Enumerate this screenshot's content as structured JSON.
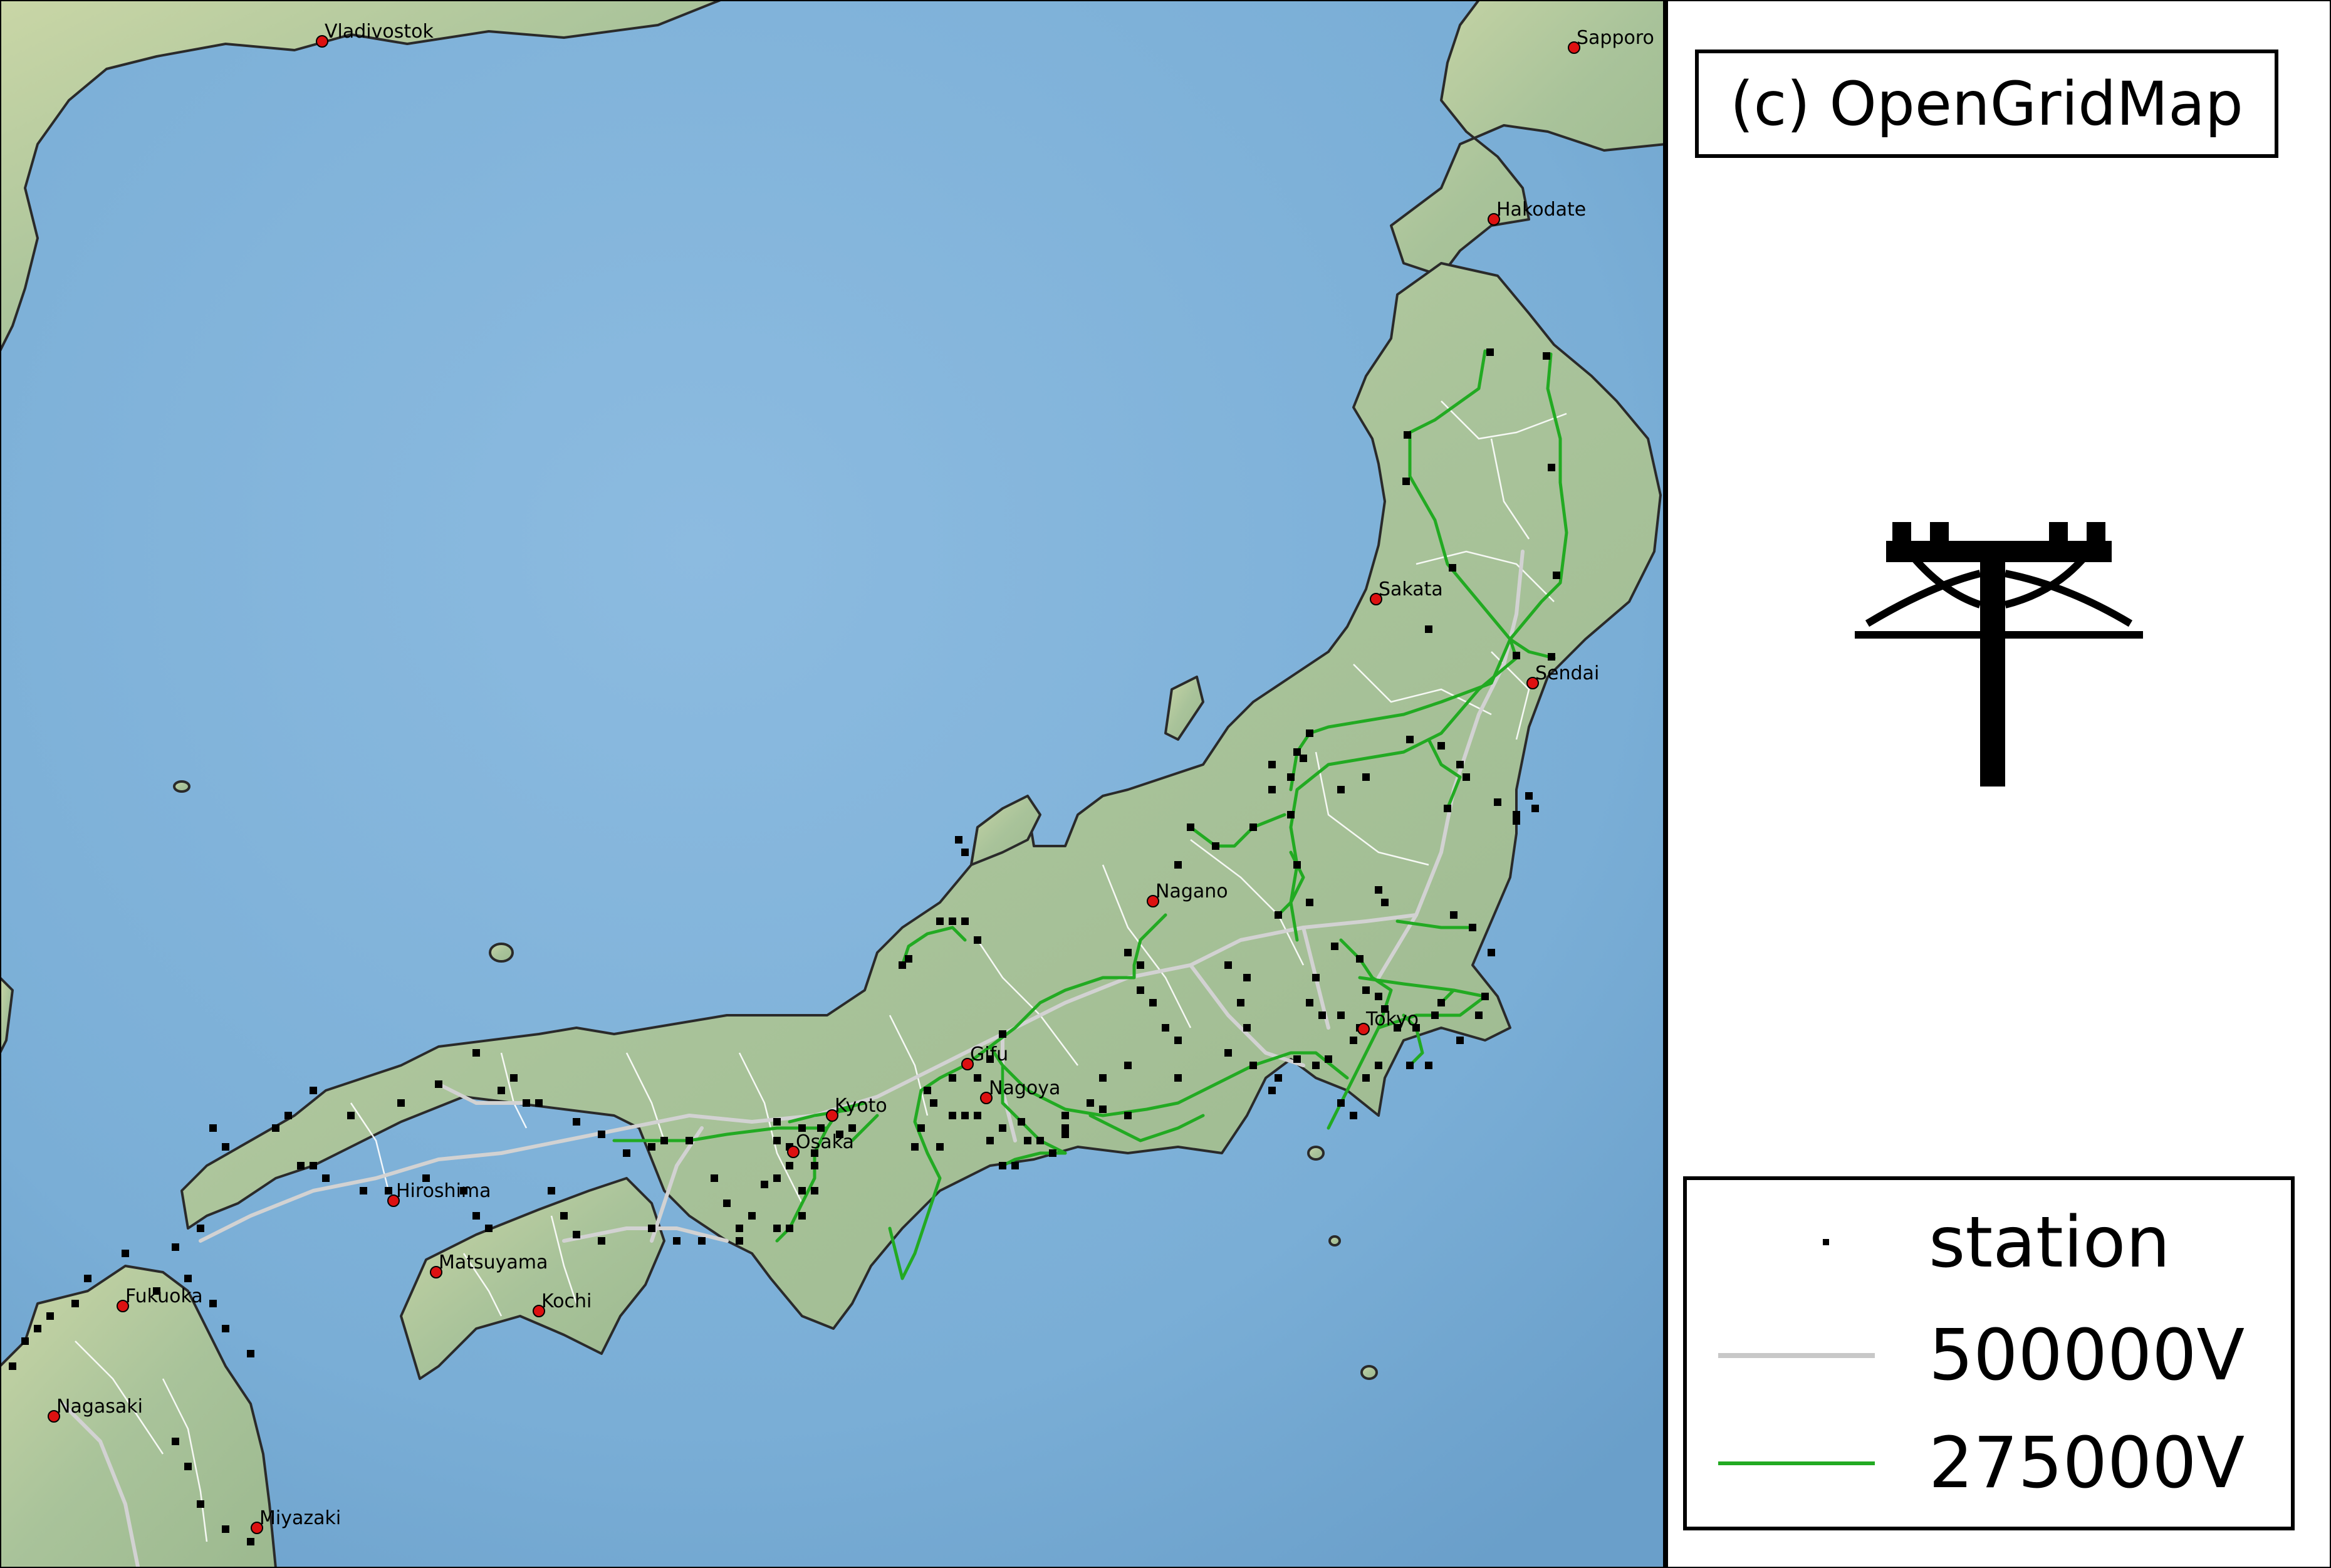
{
  "copyright": "(c) OpenGridMap",
  "logo": {
    "icon": "power-pylon-icon"
  },
  "legend": {
    "items": [
      {
        "label": "station",
        "symbol": "square-marker",
        "color": "#000000"
      },
      {
        "label": "500000V",
        "symbol": "line",
        "color": "#c8c8c8"
      },
      {
        "label": "275000V",
        "symbol": "line",
        "color": "#22aa22"
      }
    ]
  },
  "cities": [
    {
      "name": "Vladivostok"
    },
    {
      "name": "Sapporo"
    },
    {
      "name": "Hakodate"
    },
    {
      "name": "Sakata"
    },
    {
      "name": "Sendai"
    },
    {
      "name": "Nagano"
    },
    {
      "name": "Tokyo"
    },
    {
      "name": "Gifu"
    },
    {
      "name": "Nagoya"
    },
    {
      "name": "Kyoto"
    },
    {
      "name": "Osaka"
    },
    {
      "name": "Hiroshima"
    },
    {
      "name": "Matsuyama"
    },
    {
      "name": "Kochi"
    },
    {
      "name": "Fukuoka"
    },
    {
      "name": "Nagasaki"
    },
    {
      "name": "Miyazaki"
    }
  ],
  "colors": {
    "sea": "#7fb0d8",
    "land": "#a9c49a",
    "coastline": "#2a2a2a",
    "line_500kv": "#d2d2d2",
    "line_275kv": "#22aa22",
    "station": "#000000",
    "city_marker": "#dd1111"
  }
}
